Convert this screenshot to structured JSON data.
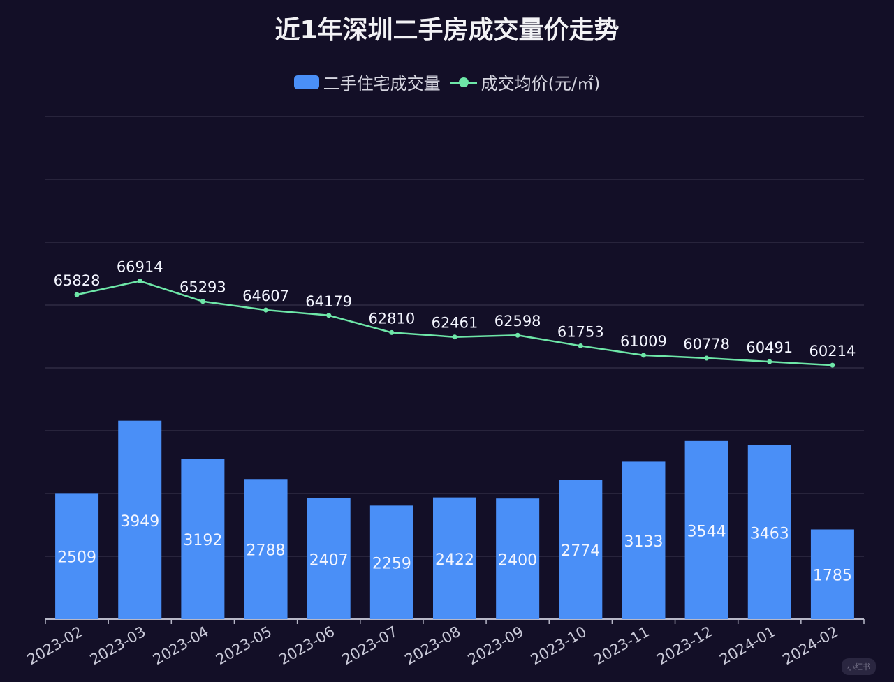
{
  "chart_data": {
    "type": "bar+line",
    "title": "近1年深圳二手房成交量价走势",
    "categories": [
      "2023-02",
      "2023-03",
      "2023-04",
      "2023-05",
      "2023-06",
      "2023-07",
      "2023-08",
      "2023-09",
      "2023-10",
      "2023-11",
      "2023-12",
      "2024-01",
      "2024-02"
    ],
    "series": [
      {
        "name": "二手住宅成交量",
        "type": "bar",
        "color": "#4a8ff7",
        "axis": "left",
        "values": [
          2509,
          3949,
          3192,
          2788,
          2407,
          2259,
          2422,
          2400,
          2774,
          3133,
          3544,
          3463,
          1785
        ]
      },
      {
        "name": "成交均价(元/㎡)",
        "type": "line",
        "color": "#6ee7a8",
        "axis": "right",
        "values": [
          65828,
          66914,
          65293,
          64607,
          64179,
          62810,
          62461,
          62598,
          61753,
          61009,
          60778,
          60491,
          60214
        ]
      }
    ],
    "left_ylim": [
      0,
      10000
    ],
    "right_ylim": [
      40000,
      80000
    ],
    "grid": true,
    "y_tick_labels_visible": false,
    "legend_position": "top-center",
    "background": "#130f27"
  },
  "watermark": "小红书"
}
